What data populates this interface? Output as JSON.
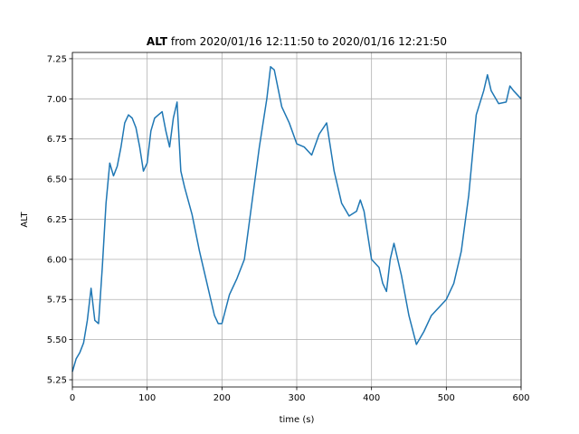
{
  "chart_data": {
    "type": "line",
    "title_bold": "ALT",
    "title": "from 2020/01/16 12:11:50 to 2020/01/16 12:21:50",
    "x_label": "time (s)",
    "y_label": "ALT",
    "color": "#1f77b4",
    "grid": true,
    "xlim": [
      0,
      600
    ],
    "xticks": [
      0,
      100,
      200,
      300,
      400,
      500,
      600
    ],
    "ylim": [
      5.205,
      7.289
    ],
    "yticks": [
      5.25,
      {
        "value": 5.5,
        "label": "5.50"
      },
      5.75,
      {
        "value": 6,
        "label": "6.00"
      },
      6.25,
      {
        "value": 6.5,
        "label": "6.50"
      },
      6.75,
      {
        "value": 7,
        "label": "7.00"
      },
      7.25
    ],
    "x": [
      0,
      5,
      10,
      15,
      20,
      25,
      30,
      35,
      40,
      45,
      50,
      55,
      60,
      65,
      70,
      75,
      80,
      85,
      90,
      95,
      100,
      105,
      110,
      115,
      120,
      125,
      130,
      135,
      140,
      145,
      150,
      160,
      170,
      180,
      190,
      195,
      200,
      210,
      220,
      230,
      240,
      250,
      260,
      265,
      270,
      280,
      290,
      300,
      310,
      320,
      330,
      340,
      350,
      360,
      370,
      380,
      385,
      390,
      400,
      410,
      415,
      420,
      425,
      430,
      440,
      450,
      460,
      470,
      480,
      490,
      500,
      510,
      520,
      530,
      540,
      550,
      555,
      560,
      570,
      580,
      585,
      590,
      600
    ],
    "values": [
      5.3,
      5.38,
      5.42,
      5.48,
      5.62,
      5.82,
      5.62,
      5.6,
      5.95,
      6.35,
      6.6,
      6.52,
      6.58,
      6.7,
      6.85,
      6.9,
      6.88,
      6.82,
      6.7,
      6.55,
      6.6,
      6.8,
      6.88,
      6.9,
      6.92,
      6.8,
      6.7,
      6.88,
      6.98,
      6.55,
      6.45,
      6.28,
      6.05,
      5.85,
      5.65,
      5.6,
      5.6,
      5.78,
      5.88,
      6.0,
      6.35,
      6.7,
      7.0,
      7.2,
      7.18,
      6.95,
      6.85,
      6.72,
      6.7,
      6.65,
      6.78,
      6.85,
      6.55,
      6.35,
      6.27,
      6.3,
      6.37,
      6.3,
      6.0,
      5.95,
      5.85,
      5.8,
      6.0,
      6.1,
      5.9,
      5.65,
      5.47,
      5.55,
      5.65,
      5.7,
      5.75,
      5.85,
      6.05,
      6.4,
      6.9,
      7.05,
      7.15,
      7.05,
      6.97,
      6.98,
      7.08,
      7.05,
      7.0
    ]
  }
}
